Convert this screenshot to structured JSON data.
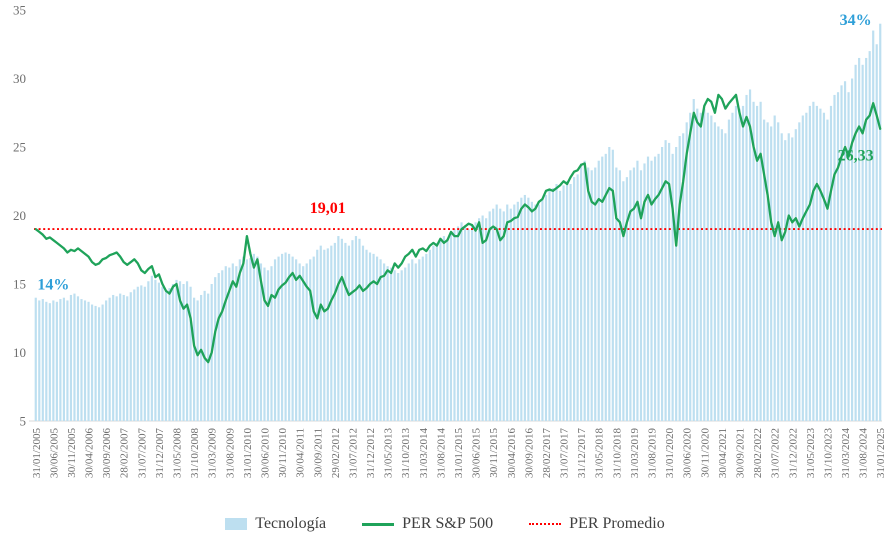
{
  "chart_data": {
    "type": "combo",
    "title": "",
    "xlabel": "",
    "ylabel": "",
    "ylim": [
      5,
      35
    ],
    "yticks": [
      5,
      10,
      15,
      20,
      25,
      30,
      35
    ],
    "x_unit": "monthly",
    "x_tick_step_months": 5,
    "x_tick_labels": [
      "31/01/2005",
      "30/06/2005",
      "30/11/2005",
      "30/04/2006",
      "30/09/2006",
      "28/02/2007",
      "31/07/2007",
      "31/12/2007",
      "31/05/2008",
      "31/10/2008",
      "31/03/2009",
      "31/08/2009",
      "31/01/2010",
      "30/06/2010",
      "30/11/2010",
      "30/04/2011",
      "30/09/2011",
      "29/02/2012",
      "31/07/2012",
      "31/12/2012",
      "31/05/2013",
      "31/10/2013",
      "31/03/2014",
      "31/08/2014",
      "31/01/2015",
      "30/06/2015",
      "30/11/2015",
      "30/04/2016",
      "30/09/2016",
      "28/02/2017",
      "31/07/2017",
      "31/12/2017",
      "31/05/2018",
      "31/10/2018",
      "31/03/2019",
      "31/08/2019",
      "31/01/2020",
      "30/06/2020",
      "30/11/2020",
      "30/04/2021",
      "30/09/2021",
      "28/02/2022",
      "31/07/2022",
      "31/12/2022",
      "31/05/2023",
      "31/10/2023",
      "31/03/2024",
      "31/08/2024",
      "31/01/2025"
    ],
    "legend_position": "bottom",
    "grid": false,
    "series": [
      {
        "name": "Tecnología",
        "type": "bar",
        "unit": "%",
        "color": "#BDDFF0",
        "values": [
          14.0,
          13.8,
          13.9,
          13.7,
          13.6,
          13.8,
          13.7,
          13.9,
          14.0,
          13.8,
          14.2,
          14.3,
          14.1,
          13.9,
          13.8,
          13.7,
          13.5,
          13.4,
          13.3,
          13.5,
          13.8,
          14.0,
          14.2,
          14.1,
          14.3,
          14.2,
          14.1,
          14.4,
          14.6,
          14.8,
          14.9,
          14.8,
          15.2,
          15.6,
          15.3,
          15.1,
          14.8,
          14.5,
          14.7,
          15.0,
          15.3,
          15.2,
          15.0,
          15.2,
          14.8,
          14.0,
          13.8,
          14.2,
          14.5,
          14.3,
          15.0,
          15.5,
          15.8,
          16.0,
          16.3,
          16.2,
          16.5,
          16.3,
          16.8,
          17.0,
          16.8,
          16.9,
          17.2,
          17.0,
          16.5,
          16.2,
          16.0,
          16.3,
          16.8,
          17.0,
          17.2,
          17.3,
          17.2,
          17.0,
          16.8,
          16.5,
          16.3,
          16.5,
          16.8,
          17.0,
          17.5,
          17.8,
          17.5,
          17.6,
          17.8,
          18.0,
          18.5,
          18.3,
          18.0,
          17.8,
          18.2,
          18.5,
          18.3,
          17.8,
          17.5,
          17.3,
          17.2,
          17.0,
          16.8,
          16.5,
          16.3,
          16.2,
          16.0,
          15.8,
          16.0,
          16.2,
          16.5,
          16.8,
          16.5,
          16.8,
          17.0,
          17.2,
          17.5,
          17.8,
          18.0,
          18.3,
          18.5,
          18.3,
          18.8,
          19.0,
          19.2,
          19.5,
          19.3,
          19.0,
          19.2,
          19.5,
          19.8,
          20.0,
          19.8,
          20.3,
          20.5,
          20.8,
          20.5,
          20.3,
          20.8,
          20.5,
          20.8,
          21.0,
          21.3,
          21.5,
          21.3,
          21.0,
          20.8,
          20.8,
          21.2,
          21.5,
          21.8,
          22.0,
          22.3,
          21.8,
          22.2,
          22.5,
          22.3,
          22.8,
          23.0,
          23.8,
          24.0,
          23.5,
          23.3,
          23.5,
          24.0,
          24.3,
          24.5,
          25.0,
          24.8,
          23.5,
          23.3,
          22.5,
          22.8,
          23.3,
          23.5,
          24.0,
          23.3,
          23.8,
          24.3,
          24.0,
          24.3,
          24.5,
          25.0,
          25.5,
          25.3,
          24.5,
          25.0,
          25.8,
          26.0,
          26.8,
          27.5,
          28.5,
          27.8,
          27.5,
          27.8,
          27.5,
          27.3,
          26.8,
          26.5,
          26.3,
          26.0,
          27.0,
          27.5,
          28.0,
          27.8,
          28.0,
          28.8,
          29.2,
          28.3,
          28.0,
          28.3,
          27.0,
          26.8,
          26.5,
          27.3,
          26.8,
          26.0,
          25.5,
          26.0,
          25.7,
          26.3,
          26.8,
          27.3,
          27.5,
          28.0,
          28.3,
          28.0,
          27.8,
          27.5,
          27.0,
          28.0,
          28.8,
          29.0,
          29.5,
          29.8,
          29.0,
          30.0,
          31.0,
          31.5,
          31.0,
          31.5,
          32.0,
          33.5,
          32.5,
          34.0
        ],
        "first_value_label": "14%",
        "last_value_label": "34%"
      },
      {
        "name": "PER S&P 500",
        "type": "line",
        "color": "#1FA35A",
        "values": [
          19.0,
          18.8,
          18.6,
          18.3,
          18.4,
          18.2,
          18.0,
          17.8,
          17.6,
          17.3,
          17.5,
          17.4,
          17.6,
          17.4,
          17.2,
          17.0,
          16.6,
          16.4,
          16.5,
          16.8,
          16.9,
          17.1,
          17.2,
          17.3,
          17.0,
          16.6,
          16.4,
          16.6,
          16.8,
          16.5,
          16.0,
          15.8,
          16.1,
          16.3,
          15.5,
          15.7,
          15.0,
          14.5,
          14.3,
          14.8,
          15.0,
          13.8,
          13.2,
          13.5,
          12.5,
          10.5,
          9.8,
          10.2,
          9.6,
          9.3,
          10.0,
          11.5,
          12.5,
          13.0,
          13.8,
          14.5,
          15.2,
          14.8,
          15.8,
          16.5,
          18.5,
          17.2,
          16.2,
          16.8,
          15.2,
          13.8,
          13.4,
          14.2,
          14.0,
          14.6,
          14.9,
          15.1,
          15.5,
          15.8,
          15.3,
          15.6,
          15.2,
          14.8,
          14.5,
          13.0,
          12.5,
          13.5,
          13.0,
          13.2,
          13.8,
          14.3,
          15.0,
          15.5,
          14.8,
          14.2,
          14.4,
          14.6,
          14.9,
          14.5,
          14.7,
          15.0,
          15.2,
          15.0,
          15.5,
          15.6,
          16.0,
          15.8,
          16.5,
          16.2,
          16.5,
          17.0,
          17.2,
          17.5,
          17.0,
          17.5,
          17.6,
          17.4,
          17.8,
          18.0,
          17.8,
          18.3,
          18.0,
          18.2,
          18.8,
          18.5,
          18.5,
          19.0,
          19.2,
          19.4,
          19.3,
          18.9,
          19.5,
          18.0,
          18.2,
          19.0,
          19.2,
          19.0,
          18.2,
          18.5,
          19.5,
          19.6,
          19.8,
          19.9,
          20.5,
          20.8,
          20.6,
          20.3,
          20.5,
          21.0,
          21.2,
          21.8,
          21.9,
          21.8,
          22.0,
          22.2,
          22.5,
          22.3,
          22.8,
          23.2,
          23.3,
          23.7,
          23.8,
          21.8,
          21.0,
          20.8,
          21.2,
          21.0,
          21.5,
          22.0,
          21.8,
          19.8,
          19.5,
          18.5,
          19.5,
          20.3,
          20.5,
          21.0,
          19.8,
          21.0,
          21.5,
          20.8,
          21.2,
          21.5,
          22.0,
          22.5,
          22.3,
          20.5,
          17.8,
          20.8,
          22.5,
          24.5,
          26.0,
          27.5,
          26.8,
          26.5,
          28.0,
          28.5,
          28.3,
          27.5,
          28.8,
          28.5,
          27.8,
          28.2,
          28.5,
          28.8,
          27.5,
          26.5,
          27.2,
          26.5,
          25.0,
          24.0,
          24.5,
          23.0,
          21.5,
          19.5,
          18.5,
          19.5,
          18.2,
          18.8,
          20.0,
          19.5,
          19.8,
          19.2,
          19.8,
          20.3,
          20.8,
          21.8,
          22.3,
          21.8,
          21.2,
          20.5,
          21.8,
          23.0,
          23.5,
          24.3,
          25.0,
          24.3,
          25.3,
          26.0,
          26.5,
          26.0,
          27.0,
          27.3,
          28.2,
          27.3,
          26.33
        ],
        "last_value_label": "26,33"
      },
      {
        "name": "PER Promedio",
        "type": "dotted-line",
        "color": "#FF0000",
        "value": 19.01,
        "value_label": "19,01"
      }
    ],
    "annotations": [
      {
        "text": "14%",
        "x": 5,
        "y": 14.6,
        "color": "#2E9FD8"
      },
      {
        "text": "19,01",
        "x": 83,
        "y": 20.2,
        "color": "#FF0000"
      },
      {
        "text": "34%",
        "x": 233,
        "y": 33.9,
        "color": "#2E9FD8"
      },
      {
        "text": "26,33",
        "x": 233,
        "y": 24.0,
        "color": "#1FA35A"
      }
    ]
  },
  "axis": {
    "text_color": "#6e6e6e",
    "line_color": "#D9D9D9"
  }
}
